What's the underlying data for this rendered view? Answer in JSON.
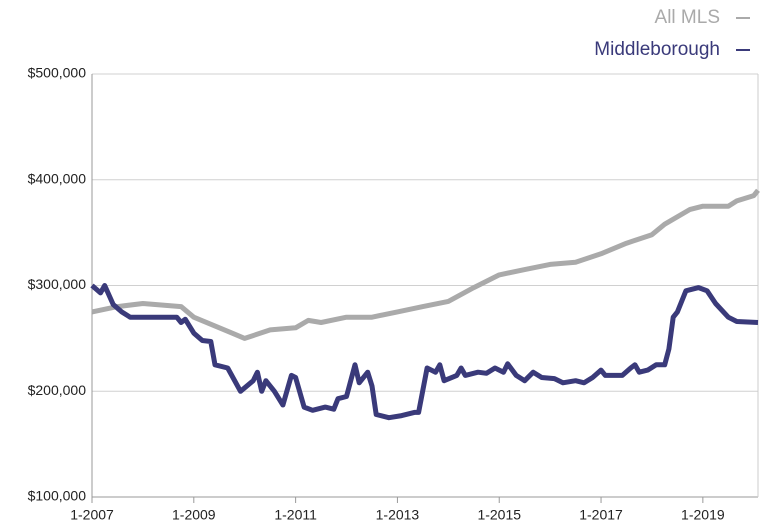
{
  "chart_data": {
    "type": "line",
    "series": [
      {
        "name": "All MLS",
        "color": "#aaaaaa",
        "x": [
          "1-2007",
          "7-2007",
          "1-2008",
          "10-2008",
          "1-2009",
          "10-2009",
          "1-2010",
          "7-2010",
          "1-2011",
          "4-2011",
          "7-2011",
          "1-2012",
          "7-2012",
          "1-2013",
          "7-2013",
          "1-2014",
          "7-2014",
          "1-2015",
          "7-2015",
          "1-2016",
          "7-2016",
          "1-2017",
          "7-2017",
          "1-2018",
          "4-2018",
          "10-2018",
          "1-2019",
          "7-2019",
          "9-2019",
          "1-2020",
          "2-2020"
        ],
        "values": [
          275000,
          280000,
          283000,
          280000,
          270000,
          255000,
          250000,
          258000,
          260000,
          267000,
          265000,
          270000,
          270000,
          275000,
          280000,
          285000,
          298000,
          310000,
          315000,
          320000,
          322000,
          330000,
          340000,
          348000,
          358000,
          372000,
          375000,
          375000,
          380000,
          385000,
          390000
        ]
      },
      {
        "name": "Middleborough",
        "color": "#3a3a7a",
        "x": [
          "1-2007",
          "3-2007",
          "4-2007",
          "6-2007",
          "8-2007",
          "10-2007",
          "9-2008",
          "10-2008",
          "11-2008",
          "1-2009",
          "3-2009",
          "5-2009",
          "6-2009",
          "9-2009",
          "12-2009",
          "3-2010",
          "4-2010",
          "5-2010",
          "6-2010",
          "8-2010",
          "10-2010",
          "12-2010",
          "1-2011",
          "3-2011",
          "5-2011",
          "8-2011",
          "10-2011",
          "11-2011",
          "1-2012",
          "3-2012",
          "4-2012",
          "6-2012",
          "7-2012",
          "8-2012",
          "11-2012",
          "2-2013",
          "5-2013",
          "6-2013",
          "8-2013",
          "10-2013",
          "11-2013",
          "12-2013",
          "3-2014",
          "4-2014",
          "5-2014",
          "8-2014",
          "10-2014",
          "12-2014",
          "2-2015",
          "3-2015",
          "5-2015",
          "7-2015",
          "9-2015",
          "11-2015",
          "2-2016",
          "4-2016",
          "7-2016",
          "9-2016",
          "11-2016",
          "1-2017",
          "2-2017",
          "6-2017",
          "8-2017",
          "9-2017",
          "10-2017",
          "12-2017",
          "2-2018",
          "4-2018",
          "5-2018",
          "6-2018",
          "7-2018",
          "9-2018",
          "12-2018",
          "2-2019",
          "4-2019",
          "7-2019",
          "9-2019",
          "2-2020"
        ],
        "values": [
          300000,
          293000,
          300000,
          282000,
          275000,
          270000,
          270000,
          265000,
          268000,
          255000,
          248000,
          247000,
          225000,
          222000,
          200000,
          210000,
          218000,
          200000,
          210000,
          200000,
          187000,
          215000,
          213000,
          185000,
          182000,
          185000,
          183000,
          193000,
          195000,
          225000,
          208000,
          218000,
          205000,
          178000,
          175000,
          177000,
          180000,
          180000,
          222000,
          218000,
          225000,
          210000,
          215000,
          222000,
          215000,
          218000,
          217000,
          222000,
          218000,
          226000,
          215000,
          210000,
          218000,
          213000,
          212000,
          208000,
          210000,
          208000,
          213000,
          220000,
          215000,
          215000,
          222000,
          225000,
          218000,
          220000,
          225000,
          225000,
          240000,
          270000,
          275000,
          295000,
          298000,
          295000,
          283000,
          270000,
          266000,
          265000
        ]
      }
    ],
    "xlim": [
      "1-2007",
      "2-2020"
    ],
    "xticks": [
      "1-2007",
      "1-2009",
      "1-2011",
      "1-2013",
      "1-2015",
      "1-2017",
      "1-2019"
    ],
    "ylim": [
      100000,
      500000
    ],
    "yticks": [
      {
        "value": 100000,
        "label": "$100,000"
      },
      {
        "value": 200000,
        "label": "$200,000"
      },
      {
        "value": 300000,
        "label": "$300,000"
      },
      {
        "value": 400000,
        "label": "$400,000"
      },
      {
        "value": 500000,
        "label": "$500,000"
      }
    ],
    "grid": true
  }
}
